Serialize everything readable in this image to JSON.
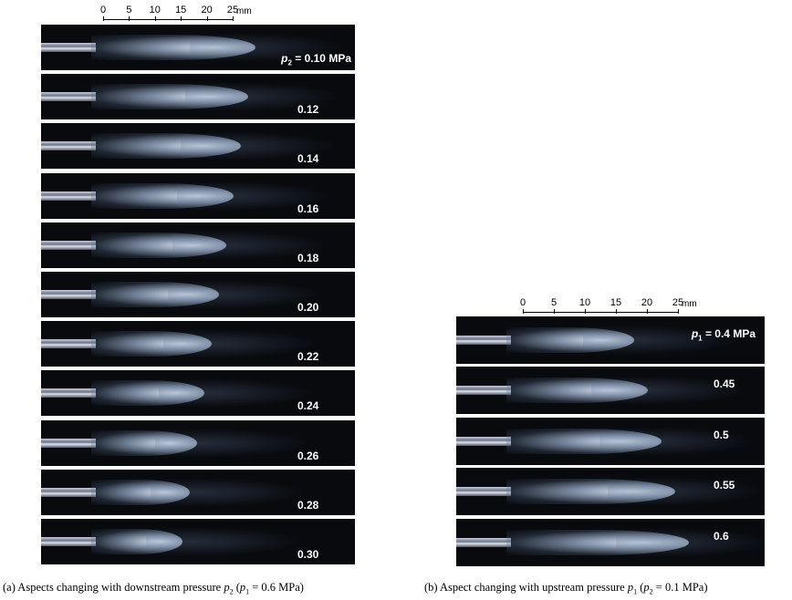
{
  "figure": {
    "left": {
      "scale": {
        "ticks": [
          "0",
          "5",
          "10",
          "15",
          "20",
          "25"
        ],
        "unit": "mm"
      },
      "first_label": [
        {
          "text": "p",
          "style": "italic"
        },
        {
          "text": "2",
          "style": "sub"
        },
        {
          "text": " = 0.10 MPa",
          "style": "normal"
        }
      ],
      "labels": [
        "0.12",
        "0.14",
        "0.16",
        "0.18",
        "0.20",
        "0.22",
        "0.24",
        "0.26",
        "0.28",
        "0.30"
      ],
      "caption": [
        {
          "text": "(a) Aspects changing with downstream pressure ",
          "style": "normal"
        },
        {
          "text": "p",
          "style": "italic"
        },
        {
          "text": "2",
          "style": "sub"
        },
        {
          "text": " (",
          "style": "normal"
        },
        {
          "text": "p",
          "style": "italic"
        },
        {
          "text": "1",
          "style": "sub"
        },
        {
          "text": " = 0.6 MPa)",
          "style": "normal"
        }
      ]
    },
    "right": {
      "scale": {
        "ticks": [
          "0",
          "5",
          "10",
          "15",
          "20",
          "25"
        ],
        "unit": "mm"
      },
      "first_label": [
        {
          "text": "p",
          "style": "italic"
        },
        {
          "text": "1",
          "style": "sub"
        },
        {
          "text": " = 0.4 MPa",
          "style": "normal"
        }
      ],
      "labels": [
        "0.45",
        "0.5",
        "0.55",
        "0.6"
      ],
      "caption": [
        {
          "text": "(b) Aspect changing with upstream pressure ",
          "style": "normal"
        },
        {
          "text": "p",
          "style": "italic"
        },
        {
          "text": "1",
          "style": "sub"
        },
        {
          "text": " (",
          "style": "normal"
        },
        {
          "text": "p",
          "style": "italic"
        },
        {
          "text": "2",
          "style": "sub"
        },
        {
          "text": " = 0.1 MPa)",
          "style": "normal"
        }
      ]
    }
  }
}
